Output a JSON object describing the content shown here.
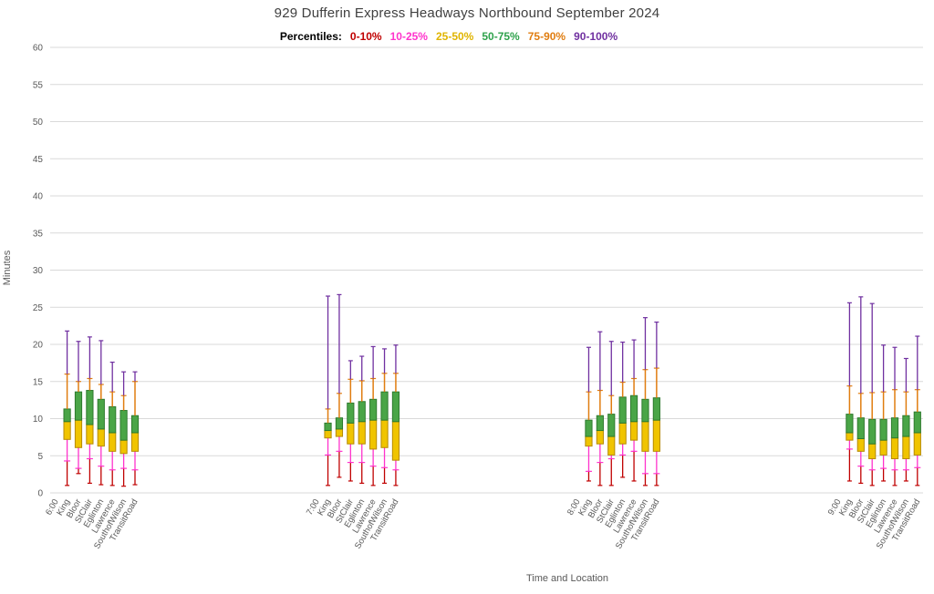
{
  "title": "929 Dufferin Express Headways Northbound September 2024",
  "legend": {
    "prefix": "Percentiles:",
    "items": [
      {
        "label": "0-10%",
        "color": "#c00000"
      },
      {
        "label": "10-25%",
        "color": "#ff33cc"
      },
      {
        "label": "25-50%",
        "color": "#e0b400"
      },
      {
        "label": "50-75%",
        "color": "#2fa24c"
      },
      {
        "label": "75-90%",
        "color": "#e07d10"
      },
      {
        "label": "90-100%",
        "color": "#7030a0"
      }
    ]
  },
  "chart_data": {
    "type": "box-percentile",
    "title": "929 Dufferin Express Headways Northbound September 2024",
    "ylabel": "Minutes",
    "xlabel": "Time and Location",
    "ylim": [
      0,
      60
    ],
    "ytick_step": 5,
    "grid": true,
    "grid_color": "#d9d9d9",
    "tick_color": "#595959",
    "percentile_levels": [
      "p0",
      "p10",
      "p25",
      "p50",
      "p75",
      "p90",
      "p100"
    ],
    "colors": {
      "p0_10": "#c00000",
      "p10_25": "#ff33cc",
      "p25_50_fill": "#f0c400",
      "p25_50_edge": "#b68a00",
      "p50_75_fill": "#4aa547",
      "p50_75_edge": "#2d7a2d",
      "p75_90": "#e07d10",
      "p90_100": "#7030a0"
    },
    "stations": [
      "King",
      "Bloor",
      "StClair",
      "Eglinton",
      "Lawrence",
      "SouthofWilson",
      "TransitRoad"
    ],
    "groups": [
      {
        "time": "6:00",
        "bars": [
          [
            1.0,
            4.3,
            7.2,
            9.6,
            11.3,
            16.0,
            21.8
          ],
          [
            2.6,
            3.3,
            6.1,
            9.8,
            13.6,
            15.0,
            20.4
          ],
          [
            1.3,
            4.6,
            6.6,
            9.2,
            13.8,
            15.4,
            21.0
          ],
          [
            1.1,
            3.6,
            6.3,
            8.6,
            12.6,
            14.6,
            20.5
          ],
          [
            1.0,
            3.1,
            5.6,
            8.1,
            11.6,
            13.6,
            17.6
          ],
          [
            0.9,
            3.3,
            5.3,
            7.1,
            11.1,
            13.1,
            16.3
          ],
          [
            1.1,
            3.1,
            5.6,
            8.1,
            10.4,
            15.0,
            16.3
          ]
        ]
      },
      {
        "time": "7:00",
        "bars": [
          [
            1.0,
            5.1,
            7.4,
            8.4,
            9.4,
            11.3,
            26.5
          ],
          [
            2.1,
            5.6,
            7.6,
            8.6,
            10.1,
            13.4,
            26.7
          ],
          [
            1.6,
            4.1,
            6.6,
            9.4,
            12.1,
            15.3,
            17.8
          ],
          [
            1.3,
            4.1,
            6.6,
            9.6,
            12.3,
            15.1,
            18.4
          ],
          [
            1.0,
            3.6,
            5.9,
            9.8,
            12.6,
            15.4,
            19.7
          ],
          [
            1.3,
            3.4,
            6.1,
            9.8,
            13.6,
            16.1,
            19.4
          ],
          [
            1.0,
            3.1,
            4.4,
            9.6,
            13.6,
            16.1,
            19.9
          ]
        ]
      },
      {
        "time": "8:00",
        "bars": [
          [
            1.6,
            2.9,
            6.3,
            7.6,
            9.8,
            13.6,
            19.6
          ],
          [
            1.0,
            4.1,
            6.6,
            8.4,
            10.4,
            13.8,
            21.7
          ],
          [
            1.0,
            4.6,
            5.1,
            7.6,
            10.6,
            13.1,
            20.4
          ],
          [
            2.1,
            5.1,
            6.6,
            9.4,
            12.9,
            14.9,
            20.3
          ],
          [
            1.6,
            5.6,
            7.1,
            9.6,
            13.1,
            15.4,
            20.6
          ],
          [
            1.0,
            2.6,
            5.6,
            9.6,
            12.6,
            16.6,
            23.6
          ],
          [
            1.0,
            2.6,
            5.6,
            9.8,
            12.8,
            16.8,
            23.0
          ]
        ]
      },
      {
        "time": "9:00",
        "bars": [
          [
            1.6,
            5.9,
            7.1,
            8.1,
            10.6,
            14.4,
            25.6
          ],
          [
            1.3,
            3.6,
            5.6,
            7.3,
            10.1,
            13.4,
            26.4
          ],
          [
            1.0,
            3.1,
            4.6,
            6.6,
            9.9,
            13.5,
            25.5
          ],
          [
            1.6,
            3.3,
            5.1,
            7.1,
            9.9,
            13.6,
            19.9
          ],
          [
            1.0,
            3.1,
            4.6,
            7.4,
            10.1,
            13.9,
            19.6
          ],
          [
            1.6,
            3.1,
            4.6,
            7.6,
            10.4,
            13.6,
            18.1
          ],
          [
            1.0,
            3.4,
            5.1,
            8.1,
            10.9,
            13.9,
            21.1
          ]
        ]
      }
    ]
  }
}
